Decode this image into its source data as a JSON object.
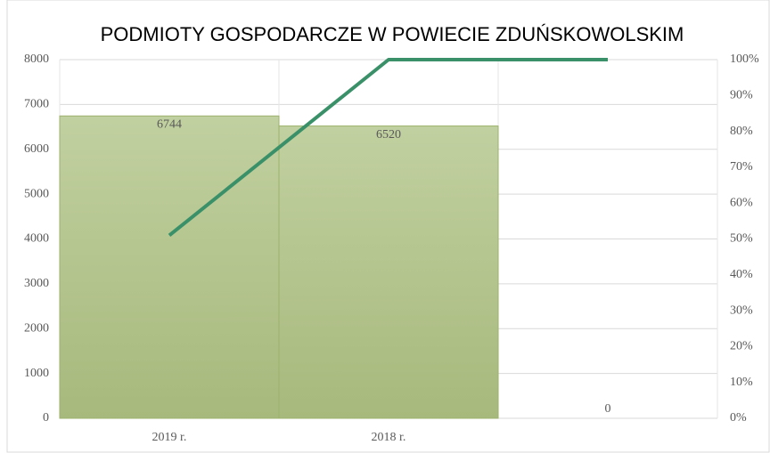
{
  "chart_data": {
    "type": "combo",
    "title": "PODMIOTY GOSPODARCZE W POWIECIE ZDUŃSKOWOLSKIM",
    "categories": [
      "2019 r.",
      "2018 r.",
      null
    ],
    "series": [
      {
        "type": "bar",
        "color": "#b3c58d",
        "values": [
          6744,
          6520,
          0
        ]
      },
      {
        "type": "line",
        "axis": "y2",
        "color": "#3a9068",
        "values": [
          51,
          100,
          100
        ]
      }
    ],
    "ylim": [
      0,
      8000
    ],
    "yticks": [
      0,
      1000,
      2000,
      3000,
      4000,
      5000,
      6000,
      7000,
      8000
    ],
    "y2lim": [
      0,
      100
    ],
    "y2ticks": [
      {
        "value": 0,
        "label": "0%"
      },
      {
        "value": 10,
        "label": "10%"
      },
      {
        "value": 20,
        "label": "20%"
      },
      {
        "value": 30,
        "label": "30%"
      },
      {
        "value": 40,
        "label": "40%"
      },
      {
        "value": 50,
        "label": "50%"
      },
      {
        "value": 60,
        "label": "60%"
      },
      {
        "value": 70,
        "label": "70%"
      },
      {
        "value": 80,
        "label": "80%"
      },
      {
        "value": 90,
        "label": "90%"
      },
      {
        "value": 100,
        "label": "100%"
      }
    ],
    "grid": true
  }
}
